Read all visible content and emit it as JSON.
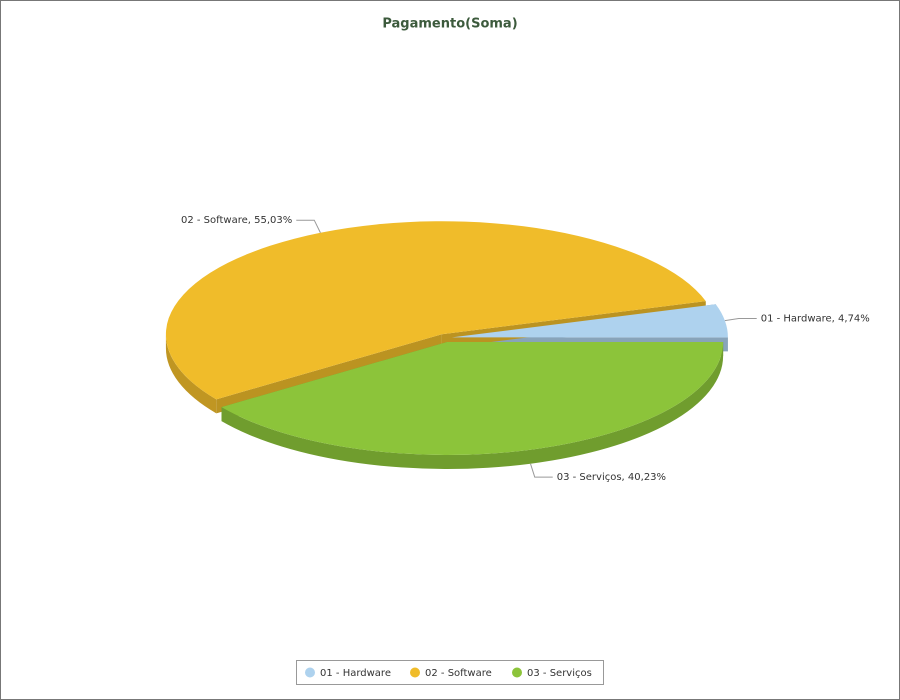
{
  "chart_data": {
    "type": "pie",
    "title": "Pagamento(Soma)",
    "categories": [
      "01 - Hardware",
      "02 - Software",
      "03 - Serviços"
    ],
    "values": [
      4.74,
      55.03,
      40.23
    ],
    "value_labels": [
      "01 - Hardware, 4,74%",
      "02 - Software, 55,03%",
      "03 - Serviços, 40,23%"
    ],
    "colors": [
      "#aed2ee",
      "#f0bc2a",
      "#8cc43a"
    ],
    "legend": "bottom"
  }
}
